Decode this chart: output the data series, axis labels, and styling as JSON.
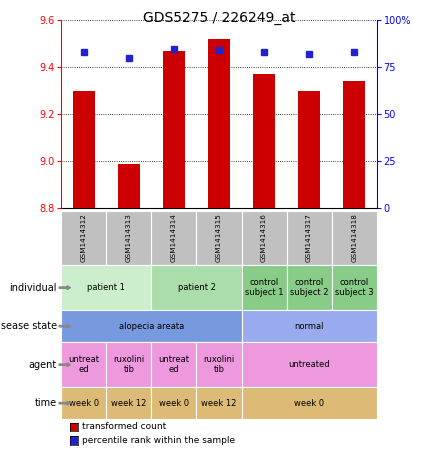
{
  "title": "GDS5275 / 226249_at",
  "samples": [
    "GSM1414312",
    "GSM1414313",
    "GSM1414314",
    "GSM1414315",
    "GSM1414316",
    "GSM1414317",
    "GSM1414318"
  ],
  "transformed_count": [
    9.3,
    8.99,
    9.47,
    9.52,
    9.37,
    9.3,
    9.34
  ],
  "percentile_rank": [
    83,
    80,
    85,
    84,
    83,
    82,
    83
  ],
  "ylim_left": [
    8.8,
    9.6
  ],
  "ylim_right": [
    0,
    100
  ],
  "yticks_left": [
    8.8,
    9.0,
    9.2,
    9.4,
    9.6
  ],
  "yticks_right": [
    0,
    25,
    50,
    75,
    100
  ],
  "ytick_right_labels": [
    "0",
    "25",
    "50",
    "75",
    "100%"
  ],
  "bar_color": "#cc0000",
  "dot_color": "#2222cc",
  "bar_width": 0.5,
  "annotation_rows": [
    {
      "label": "individual",
      "cells": [
        {
          "text": "patient 1",
          "span": 2,
          "color": "#cceecc"
        },
        {
          "text": "patient 2",
          "span": 2,
          "color": "#aaddaa"
        },
        {
          "text": "control\nsubject 1",
          "span": 1,
          "color": "#88cc88"
        },
        {
          "text": "control\nsubject 2",
          "span": 1,
          "color": "#88cc88"
        },
        {
          "text": "control\nsubject 3",
          "span": 1,
          "color": "#88cc88"
        }
      ]
    },
    {
      "label": "disease state",
      "cells": [
        {
          "text": "alopecia areata",
          "span": 4,
          "color": "#7799dd"
        },
        {
          "text": "normal",
          "span": 3,
          "color": "#99aaee"
        }
      ]
    },
    {
      "label": "agent",
      "cells": [
        {
          "text": "untreat\ned",
          "span": 1,
          "color": "#ee99dd"
        },
        {
          "text": "ruxolini\ntib",
          "span": 1,
          "color": "#ee99dd"
        },
        {
          "text": "untreat\ned",
          "span": 1,
          "color": "#ee99dd"
        },
        {
          "text": "ruxolini\ntib",
          "span": 1,
          "color": "#ee99dd"
        },
        {
          "text": "untreated",
          "span": 3,
          "color": "#ee99dd"
        }
      ]
    },
    {
      "label": "time",
      "cells": [
        {
          "text": "week 0",
          "span": 1,
          "color": "#ddbb77"
        },
        {
          "text": "week 12",
          "span": 1,
          "color": "#ddbb77"
        },
        {
          "text": "week 0",
          "span": 1,
          "color": "#ddbb77"
        },
        {
          "text": "week 12",
          "span": 1,
          "color": "#ddbb77"
        },
        {
          "text": "week 0",
          "span": 3,
          "color": "#ddbb77"
        }
      ]
    }
  ],
  "legend_items": [
    {
      "color": "#cc0000",
      "label": "transformed count"
    },
    {
      "color": "#2222cc",
      "label": "percentile rank within the sample"
    }
  ],
  "sample_label_bg": "#c0c0c0"
}
